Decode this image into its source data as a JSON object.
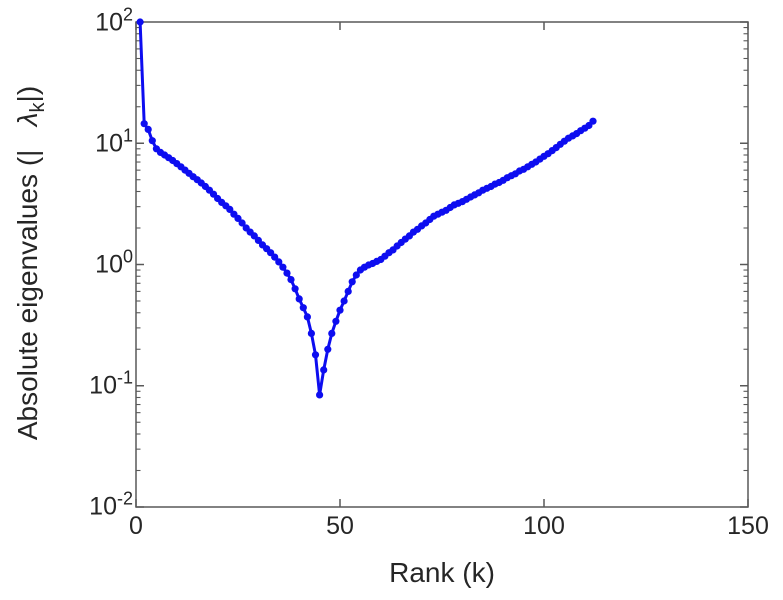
{
  "labels": {
    "x": "Rank (k)",
    "y_prefix": "Absolute eigenvalues (|",
    "y_gap": "   ",
    "y_lambda": "λ",
    "y_sub": "k",
    "y_suffix": "|)"
  },
  "axes": {
    "x_tick_labels": [
      "0",
      "50",
      "100",
      "150"
    ],
    "y_tick_base": "10",
    "y_tick_exps": [
      "2",
      "1",
      "0",
      "-1",
      "-2"
    ],
    "axis_color": "#595959",
    "text_color": "#262626"
  },
  "chart_data": {
    "type": "line",
    "title": "",
    "xlabel": "Rank (k)",
    "ylabel": "Absolute eigenvalues (|   λ_k|)",
    "x_scale": "linear",
    "y_scale": "log",
    "xlim": [
      0,
      150
    ],
    "ylim": [
      0.01,
      100
    ],
    "x_ticks": [
      0,
      50,
      100,
      150
    ],
    "y_ticks": [
      0.01,
      0.1,
      1,
      10,
      100
    ],
    "grid": false,
    "legend": "none",
    "line_color": "#0d0df0",
    "marker": "circle",
    "series": [
      {
        "name": "absolute-eigenvalues",
        "x_start": 1,
        "x_step": 1,
        "values": [
          100,
          14.5,
          13.0,
          10.5,
          9.0,
          8.4,
          8.0,
          7.6,
          7.2,
          6.8,
          6.4,
          6.0,
          5.65,
          5.3,
          5.0,
          4.7,
          4.4,
          4.1,
          3.8,
          3.5,
          3.25,
          3.05,
          2.85,
          2.6,
          2.4,
          2.2,
          2.0,
          1.85,
          1.72,
          1.58,
          1.45,
          1.35,
          1.25,
          1.15,
          1.05,
          0.95,
          0.85,
          0.75,
          0.63,
          0.52,
          0.44,
          0.37,
          0.27,
          0.18,
          0.084,
          0.135,
          0.2,
          0.27,
          0.34,
          0.42,
          0.5,
          0.6,
          0.72,
          0.82,
          0.9,
          0.95,
          0.99,
          1.02,
          1.06,
          1.1,
          1.17,
          1.25,
          1.32,
          1.42,
          1.52,
          1.62,
          1.72,
          1.85,
          1.95,
          2.08,
          2.2,
          2.35,
          2.5,
          2.6,
          2.7,
          2.8,
          2.95,
          3.1,
          3.2,
          3.3,
          3.45,
          3.6,
          3.75,
          3.9,
          4.1,
          4.25,
          4.4,
          4.6,
          4.75,
          4.95,
          5.2,
          5.4,
          5.6,
          5.9,
          6.1,
          6.4,
          6.7,
          7.0,
          7.4,
          7.8,
          8.2,
          8.7,
          9.2,
          9.8,
          10.4,
          11.0,
          11.5,
          12.0,
          12.7,
          13.3,
          14.0,
          15.2
        ]
      }
    ]
  }
}
